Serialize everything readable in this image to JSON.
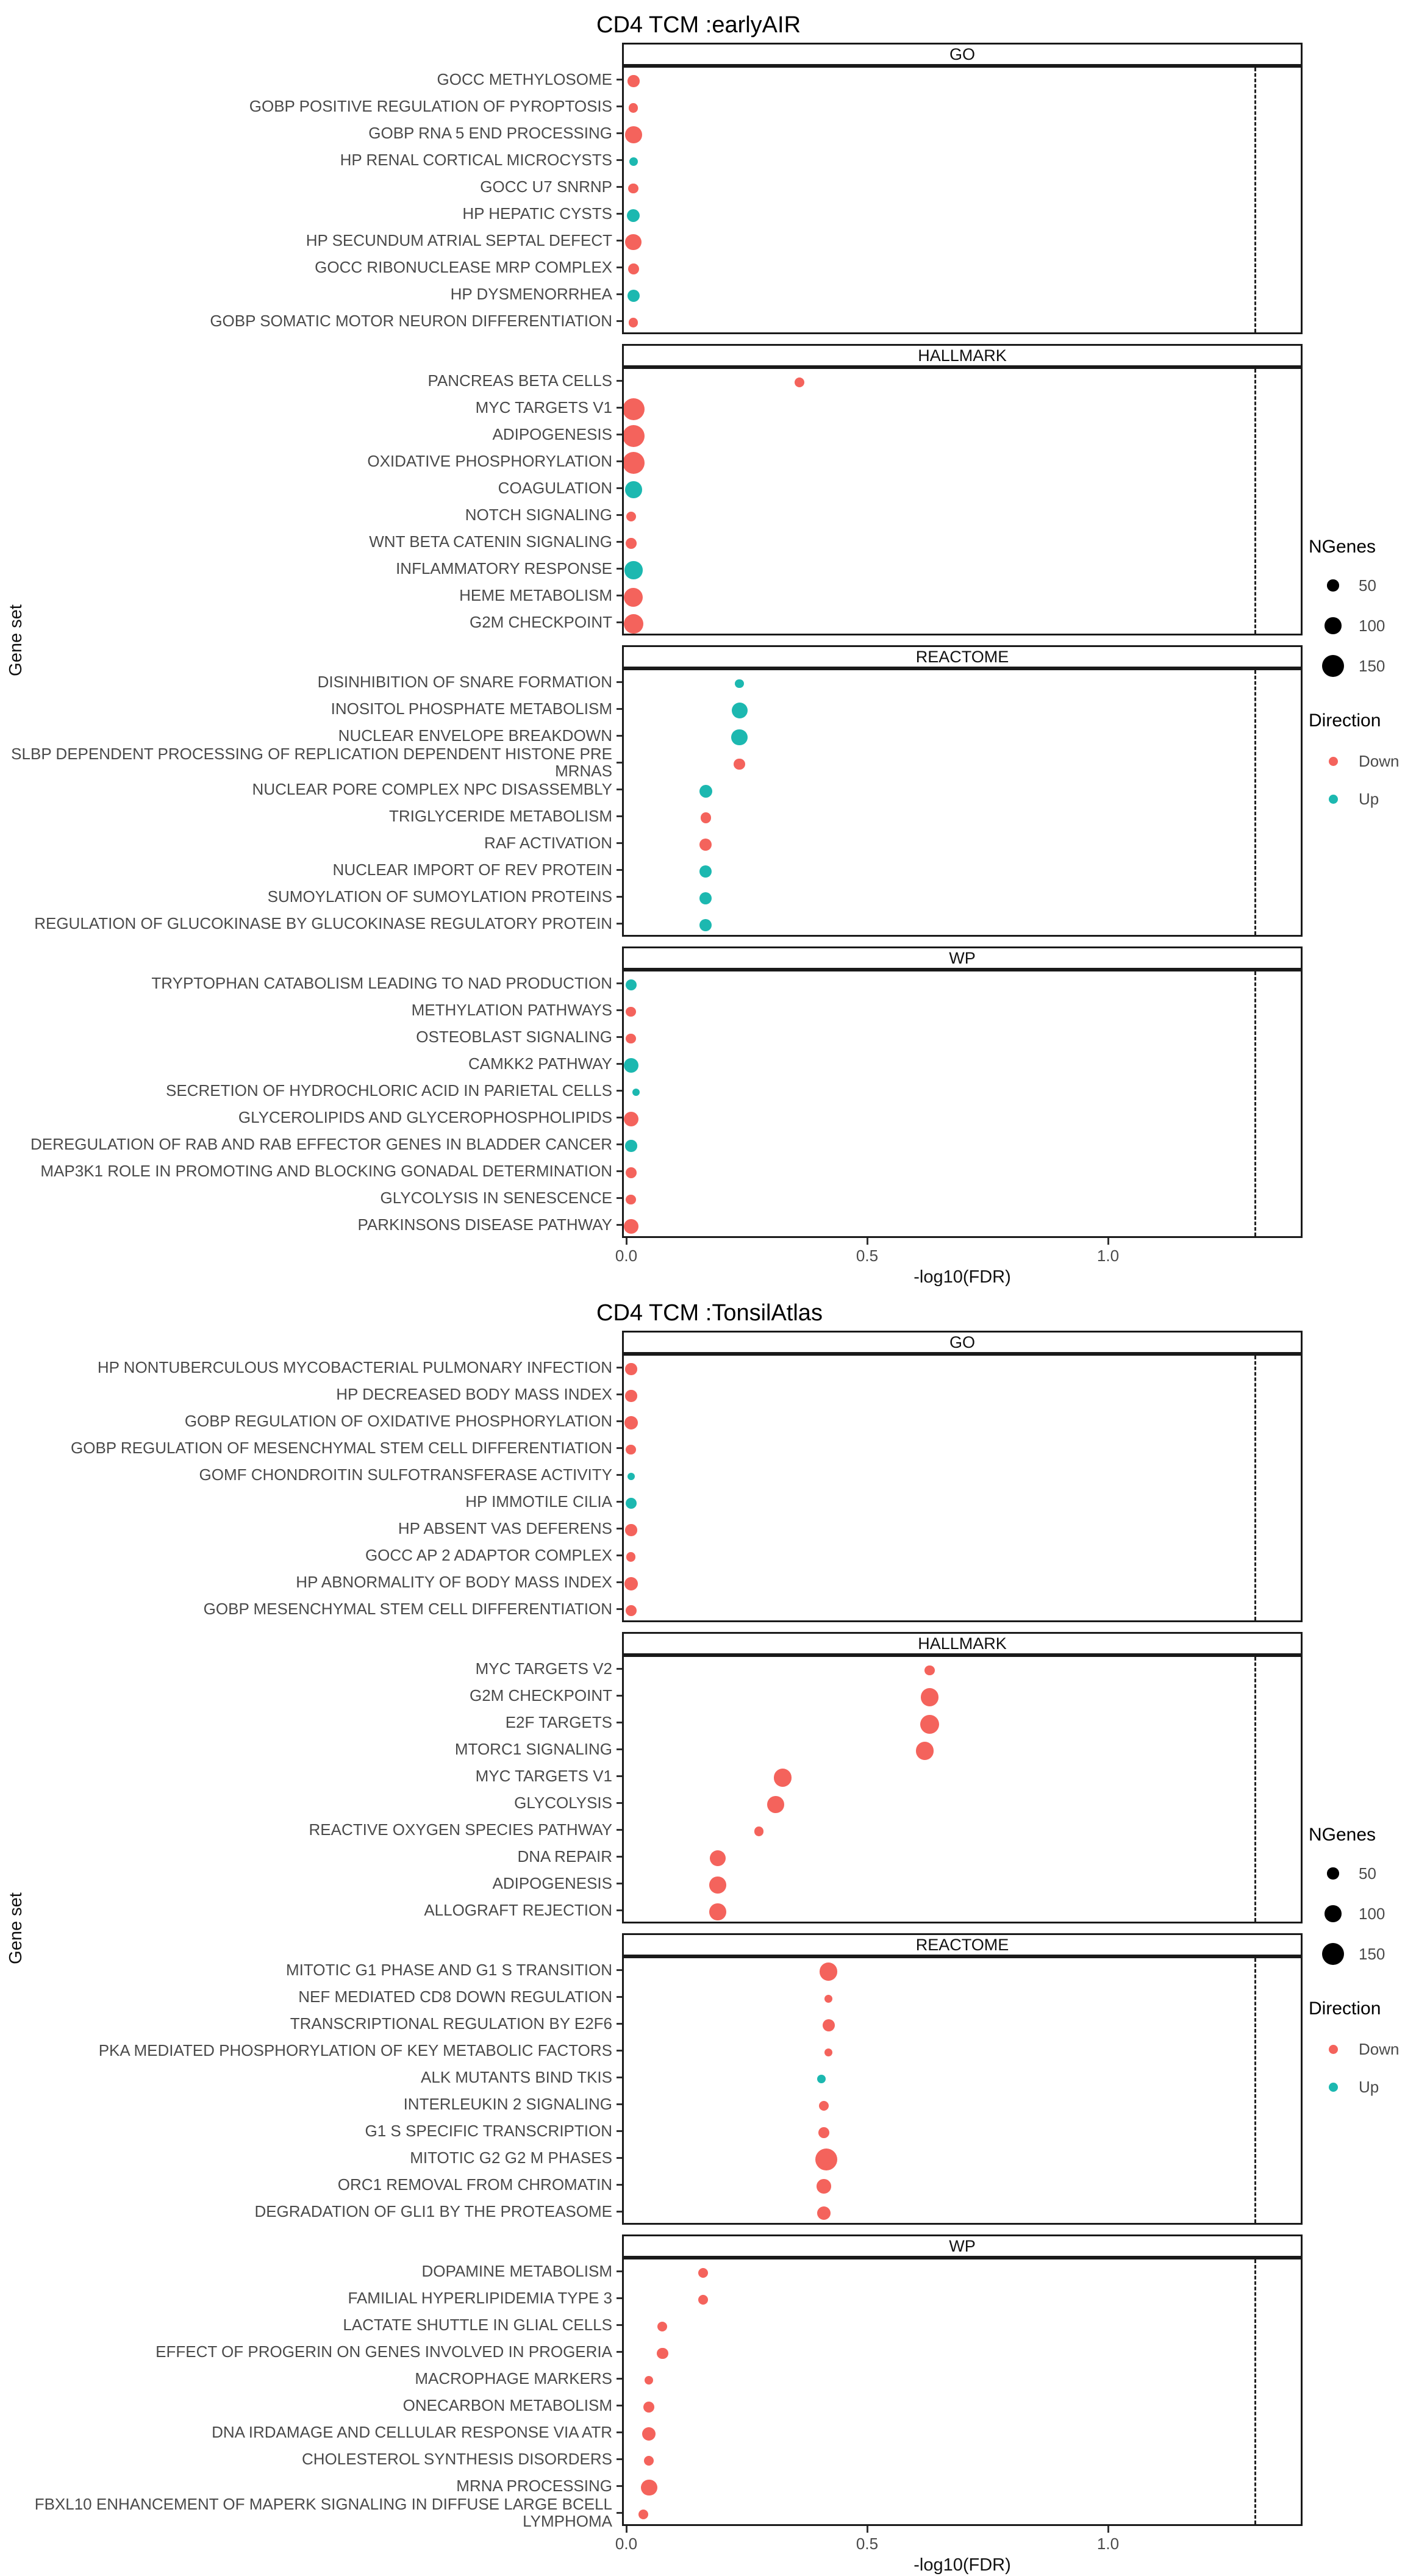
{
  "colors": {
    "down": "#F4635C",
    "up": "#1CB8B0"
  },
  "legend": {
    "size_title": "NGenes",
    "size_values": [
      50,
      100,
      150
    ],
    "direction_title": "Direction",
    "direction_levels": [
      {
        "label": "Down",
        "color": "#F4635C"
      },
      {
        "label": "Up",
        "color": "#1CB8B0"
      }
    ]
  },
  "chart_data": [
    {
      "type": "scatter",
      "title": "CD4 TCM :earlyAIR",
      "xlabel": "-log10(FDR)",
      "ylabel": "Gene set",
      "xlim": [
        -0.02,
        1.4
      ],
      "x_ticks": [
        "0.0",
        "0.5",
        "1.0"
      ],
      "x_tick_values": [
        0.0,
        0.5,
        1.0
      ],
      "threshold_x": 1.3,
      "grid": false,
      "legend_position": "right",
      "facets": [
        {
          "name": "GO",
          "points": [
            {
              "label": "GOCC METHYLOSOME",
              "x": 0.015,
              "ngenes": 50,
              "direction": "Down"
            },
            {
              "label": "GOBP POSITIVE REGULATION OF PYROPTOSIS",
              "x": 0.015,
              "ngenes": 25,
              "direction": "Down"
            },
            {
              "label": "GOBP RNA 5 END PROCESSING",
              "x": 0.015,
              "ngenes": 100,
              "direction": "Down"
            },
            {
              "label": "HP RENAL CORTICAL MICROCYSTS",
              "x": 0.015,
              "ngenes": 20,
              "direction": "Up"
            },
            {
              "label": "GOCC U7 SNRNP",
              "x": 0.015,
              "ngenes": 35,
              "direction": "Down"
            },
            {
              "label": "HP HEPATIC CYSTS",
              "x": 0.015,
              "ngenes": 60,
              "direction": "Up"
            },
            {
              "label": "HP SECUNDUM ATRIAL SEPTAL DEFECT",
              "x": 0.015,
              "ngenes": 95,
              "direction": "Down"
            },
            {
              "label": "GOCC RIBONUCLEASE MRP COMPLEX",
              "x": 0.015,
              "ngenes": 45,
              "direction": "Down"
            },
            {
              "label": "HP DYSMENORRHEA",
              "x": 0.015,
              "ngenes": 55,
              "direction": "Up"
            },
            {
              "label": "GOBP SOMATIC MOTOR NEURON DIFFERENTIATION",
              "x": 0.015,
              "ngenes": 25,
              "direction": "Down"
            }
          ]
        },
        {
          "name": "HALLMARK",
          "points": [
            {
              "label": "PANCREAS BETA CELLS",
              "x": 0.36,
              "ngenes": 30,
              "direction": "Down"
            },
            {
              "label": "MYC TARGETS V1",
              "x": 0.015,
              "ngenes": 150,
              "direction": "Down"
            },
            {
              "label": "ADIPOGENESIS",
              "x": 0.015,
              "ngenes": 150,
              "direction": "Down"
            },
            {
              "label": "OXIDATIVE PHOSPHORYLATION",
              "x": 0.015,
              "ngenes": 150,
              "direction": "Down"
            },
            {
              "label": "COAGULATION",
              "x": 0.015,
              "ngenes": 100,
              "direction": "Up"
            },
            {
              "label": "NOTCH SIGNALING",
              "x": 0.01,
              "ngenes": 30,
              "direction": "Down"
            },
            {
              "label": "WNT BETA CATENIN SIGNALING",
              "x": 0.01,
              "ngenes": 40,
              "direction": "Down"
            },
            {
              "label": "INFLAMMATORY RESPONSE",
              "x": 0.015,
              "ngenes": 110,
              "direction": "Up"
            },
            {
              "label": "HEME METABOLISM",
              "x": 0.015,
              "ngenes": 120,
              "direction": "Down"
            },
            {
              "label": "G2M CHECKPOINT",
              "x": 0.015,
              "ngenes": 130,
              "direction": "Down"
            }
          ]
        },
        {
          "name": "REACTOME",
          "points": [
            {
              "label": "DISINHIBITION OF SNARE FORMATION",
              "x": 0.235,
              "ngenes": 20,
              "direction": "Up"
            },
            {
              "label": "INOSITOL PHOSPHATE METABOLISM",
              "x": 0.235,
              "ngenes": 90,
              "direction": "Up"
            },
            {
              "label": "NUCLEAR ENVELOPE BREAKDOWN",
              "x": 0.235,
              "ngenes": 95,
              "direction": "Up"
            },
            {
              "label": "SLBP DEPENDENT PROCESSING OF REPLICATION DEPENDENT HISTONE PRE\nMRNAS",
              "x": 0.235,
              "ngenes": 45,
              "direction": "Down"
            },
            {
              "label": "NUCLEAR PORE COMPLEX NPC DISASSEMBLY",
              "x": 0.165,
              "ngenes": 60,
              "direction": "Up"
            },
            {
              "label": "TRIGLYCERIDE METABOLISM",
              "x": 0.165,
              "ngenes": 40,
              "direction": "Down"
            },
            {
              "label": "RAF ACTIVATION",
              "x": 0.165,
              "ngenes": 55,
              "direction": "Down"
            },
            {
              "label": "NUCLEAR IMPORT OF REV PROTEIN",
              "x": 0.165,
              "ngenes": 55,
              "direction": "Up"
            },
            {
              "label": "SUMOYLATION OF SUMOYLATION PROTEINS",
              "x": 0.165,
              "ngenes": 55,
              "direction": "Up"
            },
            {
              "label": "REGULATION OF GLUCOKINASE BY GLUCOKINASE REGULATORY PROTEIN",
              "x": 0.165,
              "ngenes": 55,
              "direction": "Up"
            }
          ]
        },
        {
          "name": "WP",
          "points": [
            {
              "label": "TRYPTOPHAN CATABOLISM LEADING TO NAD PRODUCTION",
              "x": 0.01,
              "ngenes": 45,
              "direction": "Up"
            },
            {
              "label": "METHYLATION PATHWAYS",
              "x": 0.01,
              "ngenes": 35,
              "direction": "Down"
            },
            {
              "label": "OSTEOBLAST SIGNALING",
              "x": 0.01,
              "ngenes": 35,
              "direction": "Down"
            },
            {
              "label": "CAMKK2 PATHWAY",
              "x": 0.01,
              "ngenes": 80,
              "direction": "Up"
            },
            {
              "label": "SECRETION OF HYDROCHLORIC ACID IN PARIETAL CELLS",
              "x": 0.02,
              "ngenes": 8,
              "direction": "Up"
            },
            {
              "label": "GLYCEROLIPIDS AND GLYCEROPHOSPHOLIPIDS",
              "x": 0.01,
              "ngenes": 80,
              "direction": "Down"
            },
            {
              "label": "DEREGULATION OF RAB AND RAB EFFECTOR GENES IN BLADDER CANCER",
              "x": 0.01,
              "ngenes": 50,
              "direction": "Up"
            },
            {
              "label": "MAP3K1 ROLE IN PROMOTING AND BLOCKING GONADAL DETERMINATION",
              "x": 0.01,
              "ngenes": 45,
              "direction": "Down"
            },
            {
              "label": "GLYCOLYSIS IN SENESCENCE",
              "x": 0.01,
              "ngenes": 35,
              "direction": "Down"
            },
            {
              "label": "PARKINSONS DISEASE PATHWAY",
              "x": 0.01,
              "ngenes": 75,
              "direction": "Down"
            }
          ]
        }
      ]
    },
    {
      "type": "scatter",
      "title": "CD4 TCM :TonsilAtlas",
      "xlabel": "-log10(FDR)",
      "ylabel": "Gene set",
      "xlim": [
        -0.02,
        1.4
      ],
      "x_ticks": [
        "0.0",
        "0.5",
        "1.0"
      ],
      "x_tick_values": [
        0.0,
        0.5,
        1.0
      ],
      "threshold_x": 1.3,
      "grid": false,
      "legend_position": "right",
      "facets": [
        {
          "name": "GO",
          "points": [
            {
              "label": "HP NONTUBERCULOUS MYCOBACTERIAL PULMONARY INFECTION",
              "x": 0.01,
              "ngenes": 50,
              "direction": "Down"
            },
            {
              "label": "HP DECREASED BODY MASS INDEX",
              "x": 0.01,
              "ngenes": 50,
              "direction": "Down"
            },
            {
              "label": "GOBP REGULATION OF OXIDATIVE PHOSPHORYLATION",
              "x": 0.01,
              "ngenes": 65,
              "direction": "Down"
            },
            {
              "label": "GOBP REGULATION OF MESENCHYMAL STEM CELL DIFFERENTIATION",
              "x": 0.01,
              "ngenes": 35,
              "direction": "Down"
            },
            {
              "label": "GOMF CHONDROITIN SULFOTRANSFERASE ACTIVITY",
              "x": 0.01,
              "ngenes": 8,
              "direction": "Up"
            },
            {
              "label": "HP IMMOTILE CILIA",
              "x": 0.01,
              "ngenes": 45,
              "direction": "Up"
            },
            {
              "label": "HP ABSENT VAS DEFERENS",
              "x": 0.01,
              "ngenes": 50,
              "direction": "Down"
            },
            {
              "label": "GOCC AP 2 ADAPTOR COMPLEX",
              "x": 0.01,
              "ngenes": 25,
              "direction": "Down"
            },
            {
              "label": "HP ABNORMALITY OF BODY MASS INDEX",
              "x": 0.01,
              "ngenes": 65,
              "direction": "Down"
            },
            {
              "label": "GOBP MESENCHYMAL STEM CELL DIFFERENTIATION",
              "x": 0.01,
              "ngenes": 45,
              "direction": "Down"
            }
          ]
        },
        {
          "name": "HALLMARK",
          "points": [
            {
              "label": "MYC TARGETS V2",
              "x": 0.63,
              "ngenes": 35,
              "direction": "Down"
            },
            {
              "label": "G2M CHECKPOINT",
              "x": 0.63,
              "ngenes": 110,
              "direction": "Down"
            },
            {
              "label": "E2F TARGETS",
              "x": 0.63,
              "ngenes": 120,
              "direction": "Down"
            },
            {
              "label": "MTORC1 SIGNALING",
              "x": 0.62,
              "ngenes": 110,
              "direction": "Down"
            },
            {
              "label": "MYC TARGETS V1",
              "x": 0.325,
              "ngenes": 110,
              "direction": "Down"
            },
            {
              "label": "GLYCOLYSIS",
              "x": 0.31,
              "ngenes": 100,
              "direction": "Down"
            },
            {
              "label": "REACTIVE OXYGEN SPECIES PATHWAY",
              "x": 0.275,
              "ngenes": 25,
              "direction": "Down"
            },
            {
              "label": "DNA REPAIR",
              "x": 0.19,
              "ngenes": 90,
              "direction": "Down"
            },
            {
              "label": "ADIPOGENESIS",
              "x": 0.19,
              "ngenes": 100,
              "direction": "Down"
            },
            {
              "label": "ALLOGRAFT REJECTION",
              "x": 0.19,
              "ngenes": 100,
              "direction": "Down"
            }
          ]
        },
        {
          "name": "REACTOME",
          "points": [
            {
              "label": "MITOTIC G1 PHASE AND G1 S TRANSITION",
              "x": 0.42,
              "ngenes": 110,
              "direction": "Down"
            },
            {
              "label": "NEF MEDIATED CD8 DOWN REGULATION",
              "x": 0.42,
              "ngenes": 12,
              "direction": "Down"
            },
            {
              "label": "TRANSCRIPTIONAL REGULATION BY E2F6",
              "x": 0.42,
              "ngenes": 55,
              "direction": "Down"
            },
            {
              "label": "PKA MEDIATED PHOSPHORYLATION OF KEY METABOLIC FACTORS",
              "x": 0.42,
              "ngenes": 12,
              "direction": "Down"
            },
            {
              "label": "ALK MUTANTS BIND TKIS",
              "x": 0.405,
              "ngenes": 20,
              "direction": "Up"
            },
            {
              "label": "INTERLEUKIN 2 SIGNALING",
              "x": 0.41,
              "ngenes": 30,
              "direction": "Down"
            },
            {
              "label": "G1 S SPECIFIC TRANSCRIPTION",
              "x": 0.41,
              "ngenes": 40,
              "direction": "Down"
            },
            {
              "label": "MITOTIC G2 G2 M PHASES",
              "x": 0.415,
              "ngenes": 150,
              "direction": "Down"
            },
            {
              "label": "ORC1 REMOVAL FROM CHROMATIN",
              "x": 0.41,
              "ngenes": 75,
              "direction": "Down"
            },
            {
              "label": "DEGRADATION OF GLI1 BY THE PROTEASOME",
              "x": 0.41,
              "ngenes": 65,
              "direction": "Down"
            }
          ]
        },
        {
          "name": "WP",
          "points": [
            {
              "label": "DOPAMINE METABOLISM",
              "x": 0.16,
              "ngenes": 30,
              "direction": "Down"
            },
            {
              "label": "FAMILIAL HYPERLIPIDEMIA TYPE 3",
              "x": 0.16,
              "ngenes": 30,
              "direction": "Down"
            },
            {
              "label": "LACTATE SHUTTLE IN GLIAL CELLS",
              "x": 0.075,
              "ngenes": 30,
              "direction": "Down"
            },
            {
              "label": "EFFECT OF PROGERIN ON GENES INVOLVED IN PROGERIA",
              "x": 0.075,
              "ngenes": 45,
              "direction": "Down"
            },
            {
              "label": "MACROPHAGE MARKERS",
              "x": 0.047,
              "ngenes": 20,
              "direction": "Down"
            },
            {
              "label": "ONECARBON METABOLISM",
              "x": 0.047,
              "ngenes": 45,
              "direction": "Down"
            },
            {
              "label": "DNA IRDAMAGE AND CELLULAR RESPONSE VIA ATR",
              "x": 0.047,
              "ngenes": 70,
              "direction": "Down"
            },
            {
              "label": "CHOLESTEROL SYNTHESIS DISORDERS",
              "x": 0.047,
              "ngenes": 30,
              "direction": "Down"
            },
            {
              "label": "MRNA PROCESSING",
              "x": 0.047,
              "ngenes": 95,
              "direction": "Down"
            },
            {
              "label": "FBXL10 ENHANCEMENT OF MAPERK SIGNALING IN DIFFUSE LARGE BCELL LYMPHOMA",
              "x": 0.035,
              "ngenes": 30,
              "direction": "Down"
            }
          ]
        }
      ]
    }
  ]
}
